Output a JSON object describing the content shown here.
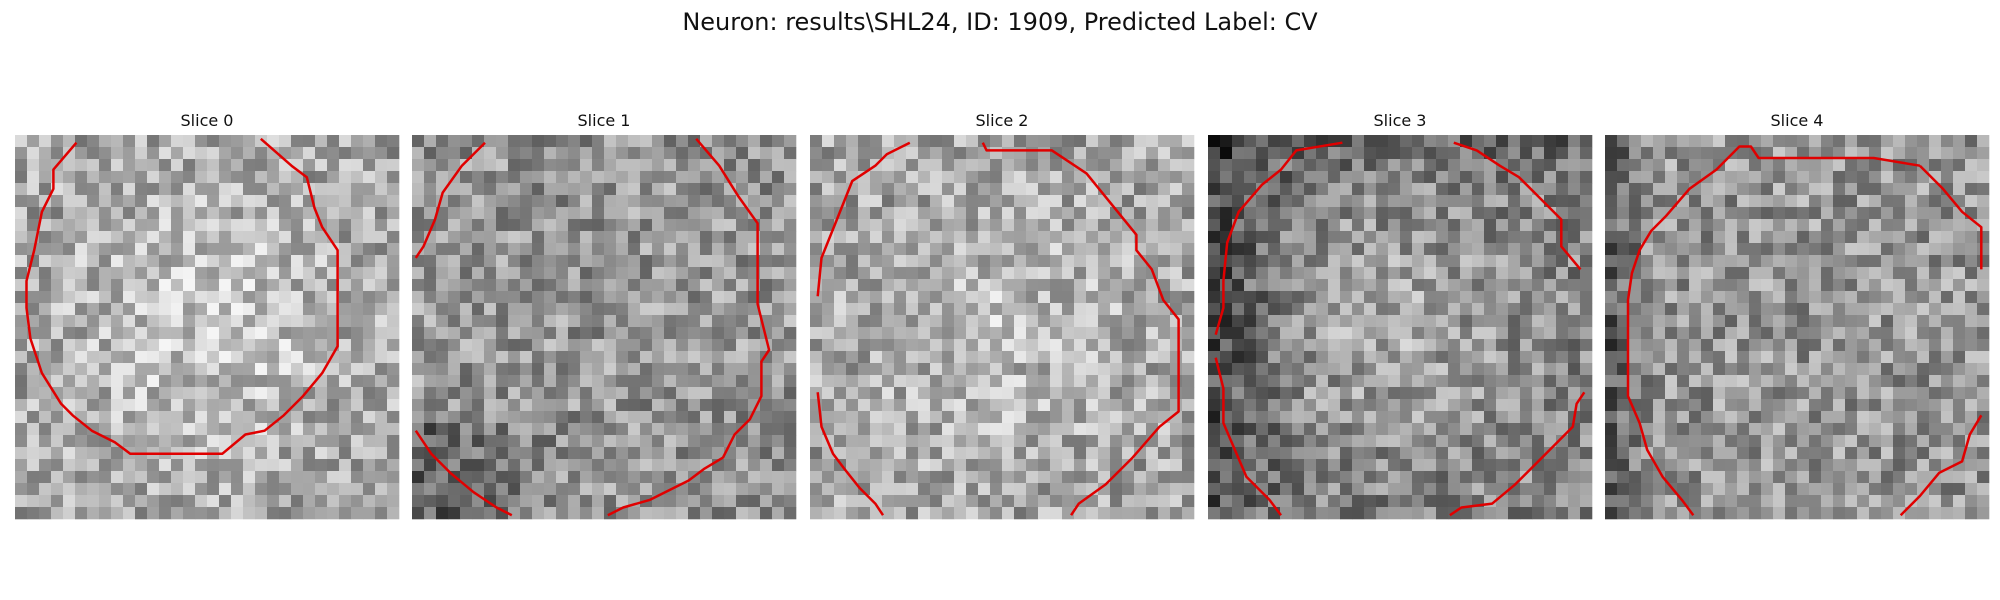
{
  "figure": {
    "title": "Neuron: results\\SHL24, ID: 1909, Predicted Label: CV",
    "contour_color": "#e00000"
  },
  "slices": [
    {
      "title": "Slice 0",
      "image": "grayscale-noise-bright-center",
      "contours": [
        [
          [
            0.16,
            0.02
          ],
          [
            0.1,
            0.09
          ],
          [
            0.1,
            0.14
          ],
          [
            0.07,
            0.2
          ],
          [
            0.05,
            0.3
          ],
          [
            0.03,
            0.38
          ],
          [
            0.03,
            0.45
          ],
          [
            0.04,
            0.53
          ],
          [
            0.07,
            0.62
          ],
          [
            0.12,
            0.7
          ],
          [
            0.15,
            0.73
          ],
          [
            0.2,
            0.77
          ],
          [
            0.26,
            0.8
          ],
          [
            0.3,
            0.83
          ],
          [
            0.54,
            0.83
          ],
          [
            0.6,
            0.78
          ],
          [
            0.65,
            0.77
          ],
          [
            0.7,
            0.73
          ],
          [
            0.75,
            0.68
          ],
          [
            0.8,
            0.62
          ],
          [
            0.84,
            0.55
          ],
          [
            0.84,
            0.3
          ],
          [
            0.8,
            0.24
          ],
          [
            0.78,
            0.19
          ],
          [
            0.76,
            0.11
          ],
          [
            0.72,
            0.08
          ],
          [
            0.64,
            0.01
          ]
        ]
      ]
    },
    {
      "title": "Slice 1",
      "image": "grayscale-noise-dark-lower-left",
      "contours": [
        [
          [
            0.19,
            0.02
          ],
          [
            0.13,
            0.08
          ],
          [
            0.08,
            0.15
          ],
          [
            0.06,
            0.22
          ],
          [
            0.03,
            0.29
          ],
          [
            0.01,
            0.32
          ]
        ],
        [
          [
            0.74,
            0.01
          ],
          [
            0.8,
            0.08
          ],
          [
            0.85,
            0.16
          ],
          [
            0.9,
            0.23
          ],
          [
            0.9,
            0.44
          ],
          [
            0.93,
            0.56
          ],
          [
            0.91,
            0.59
          ],
          [
            0.91,
            0.68
          ],
          [
            0.88,
            0.74
          ],
          [
            0.84,
            0.78
          ],
          [
            0.81,
            0.84
          ],
          [
            0.76,
            0.87
          ],
          [
            0.72,
            0.9
          ],
          [
            0.68,
            0.92
          ],
          [
            0.62,
            0.95
          ],
          [
            0.55,
            0.97
          ],
          [
            0.51,
            0.99
          ]
        ],
        [
          [
            0.01,
            0.77
          ],
          [
            0.05,
            0.83
          ],
          [
            0.1,
            0.88
          ],
          [
            0.16,
            0.93
          ],
          [
            0.22,
            0.97
          ],
          [
            0.26,
            0.99
          ]
        ]
      ]
    },
    {
      "title": "Slice 2",
      "image": "grayscale-noise-bright",
      "contours": [
        [
          [
            0.26,
            0.02
          ],
          [
            0.2,
            0.05
          ],
          [
            0.17,
            0.08
          ],
          [
            0.11,
            0.12
          ],
          [
            0.07,
            0.22
          ],
          [
            0.03,
            0.32
          ],
          [
            0.02,
            0.42
          ]
        ],
        [
          [
            0.45,
            0.02
          ],
          [
            0.46,
            0.04
          ],
          [
            0.63,
            0.04
          ],
          [
            0.72,
            0.1
          ],
          [
            0.85,
            0.26
          ],
          [
            0.85,
            0.3
          ],
          [
            0.89,
            0.35
          ],
          [
            0.92,
            0.43
          ],
          [
            0.96,
            0.48
          ],
          [
            0.96,
            0.72
          ],
          [
            0.91,
            0.76
          ],
          [
            0.84,
            0.84
          ],
          [
            0.77,
            0.91
          ],
          [
            0.7,
            0.96
          ],
          [
            0.68,
            0.99
          ]
        ],
        [
          [
            0.02,
            0.67
          ],
          [
            0.03,
            0.76
          ],
          [
            0.06,
            0.83
          ],
          [
            0.09,
            0.87
          ],
          [
            0.13,
            0.92
          ],
          [
            0.17,
            0.96
          ],
          [
            0.19,
            0.99
          ]
        ]
      ]
    },
    {
      "title": "Slice 3",
      "image": "grayscale-noise-dark-edges",
      "contours": [
        [
          [
            0.35,
            0.02
          ],
          [
            0.23,
            0.04
          ],
          [
            0.19,
            0.09
          ],
          [
            0.14,
            0.13
          ],
          [
            0.08,
            0.2
          ],
          [
            0.05,
            0.28
          ],
          [
            0.04,
            0.38
          ],
          [
            0.04,
            0.45
          ],
          [
            0.02,
            0.52
          ]
        ],
        [
          [
            0.64,
            0.02
          ],
          [
            0.7,
            0.04
          ],
          [
            0.76,
            0.08
          ],
          [
            0.81,
            0.11
          ],
          [
            0.86,
            0.16
          ],
          [
            0.92,
            0.22
          ],
          [
            0.92,
            0.29
          ],
          [
            0.97,
            0.35
          ]
        ],
        [
          [
            0.02,
            0.58
          ],
          [
            0.04,
            0.66
          ],
          [
            0.04,
            0.75
          ],
          [
            0.07,
            0.82
          ],
          [
            0.1,
            0.89
          ],
          [
            0.16,
            0.95
          ],
          [
            0.19,
            0.99
          ]
        ],
        [
          [
            0.98,
            0.67
          ],
          [
            0.96,
            0.7
          ],
          [
            0.95,
            0.76
          ],
          [
            0.9,
            0.81
          ],
          [
            0.85,
            0.86
          ],
          [
            0.8,
            0.91
          ],
          [
            0.74,
            0.96
          ],
          [
            0.66,
            0.97
          ],
          [
            0.63,
            0.99
          ]
        ]
      ]
    },
    {
      "title": "Slice 4",
      "image": "grayscale-noise-dark-left",
      "contours": [
        [
          [
            0.82,
            0.08
          ],
          [
            0.88,
            0.14
          ],
          [
            0.93,
            0.2
          ],
          [
            0.98,
            0.24
          ],
          [
            0.98,
            0.35
          ]
        ],
        [
          [
            0.82,
            0.08
          ],
          [
            0.7,
            0.06
          ],
          [
            0.4,
            0.06
          ],
          [
            0.38,
            0.03
          ],
          [
            0.35,
            0.03
          ],
          [
            0.29,
            0.09
          ],
          [
            0.22,
            0.14
          ],
          [
            0.16,
            0.21
          ],
          [
            0.12,
            0.25
          ],
          [
            0.09,
            0.3
          ],
          [
            0.07,
            0.36
          ],
          [
            0.06,
            0.43
          ],
          [
            0.06,
            0.68
          ],
          [
            0.09,
            0.75
          ],
          [
            0.11,
            0.82
          ],
          [
            0.15,
            0.89
          ],
          [
            0.2,
            0.95
          ],
          [
            0.23,
            0.99
          ]
        ],
        [
          [
            0.98,
            0.73
          ],
          [
            0.95,
            0.78
          ],
          [
            0.93,
            0.85
          ],
          [
            0.87,
            0.88
          ],
          [
            0.82,
            0.94
          ],
          [
            0.77,
            0.99
          ]
        ]
      ]
    }
  ]
}
